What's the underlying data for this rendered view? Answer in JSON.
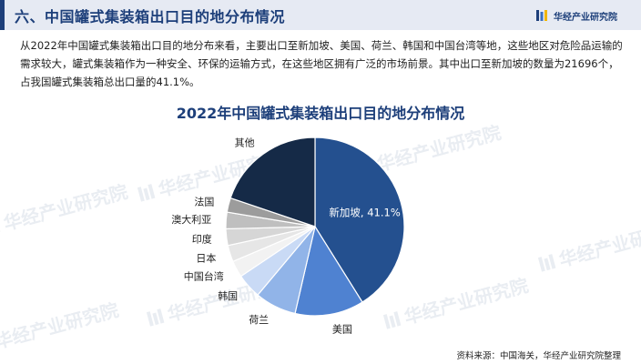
{
  "header": {
    "title": "六、中国罐式集装箱出口目的地分布情况",
    "brand": "华经产业研究院"
  },
  "intro": "从2022年中国罐式集装箱出口目的地分布来看，主要出口至新加坡、美国、荷兰、韩国和中国台湾等地，这些地区对危险品运输的需求较大，罐式集装箱作为一种安全、环保的运输方式，在这些地区拥有广泛的市场前景。其中出口至新加坡的数量为21696个，占我国罐式集装箱总出口量的41.1%。",
  "source": "资料来源：中国海关，华经产业研究院整理",
  "watermark": "华经产业研究院",
  "colors": {
    "brand": "#1d3f7a"
  },
  "chart_data": {
    "type": "pie",
    "title": "2022年中国罐式集装箱出口目的地分布情况",
    "categories": [
      "新加坡",
      "美国",
      "荷兰",
      "韩国",
      "中国台湾",
      "日本",
      "印度",
      "澳大利亚",
      "法国",
      "其他"
    ],
    "values": [
      41.1,
      12.5,
      7.5,
      4.5,
      3.0,
      3.0,
      3.0,
      3.0,
      2.6,
      19.8
    ],
    "data_labels": [
      "新加坡, 41.1%",
      "美国",
      "荷兰",
      "韩国",
      "中国台湾",
      "日本",
      "印度",
      "澳大利亚",
      "法国",
      "其他"
    ],
    "colors": [
      "#24508f",
      "#4f82d1",
      "#91b4e8",
      "#c9daf5",
      "#f2f2f2",
      "#e6e6e6",
      "#d6d6d6",
      "#bfbfbf",
      "#9c9c9c",
      "#152a47"
    ],
    "start_angle_deg": 0,
    "direction": "clockwise",
    "legend": "none"
  }
}
